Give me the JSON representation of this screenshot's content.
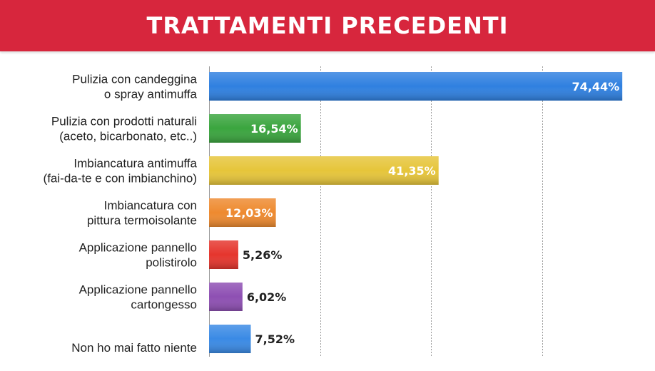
{
  "header": {
    "title": "TRATTAMENTI PRECEDENTI"
  },
  "colors": {
    "header_bg": "#d7263d",
    "grid": "#9a9a9a"
  },
  "chart_data": {
    "type": "bar",
    "orientation": "horizontal",
    "title": "TRATTAMENTI PRECEDENTI",
    "xlim": [
      0,
      75
    ],
    "grid": true,
    "legend": "none",
    "categories": [
      [
        "Pulizia con candeggina",
        "o spray antimuffa"
      ],
      [
        "Pulizia con prodotti naturali",
        "(aceto, bicarbonato, etc..)"
      ],
      [
        "Imbiancatura antimuffa",
        "(fai-da-te e con imbianchino)"
      ],
      [
        "Imbiancatura con",
        "pittura termoisolante"
      ],
      [
        "Applicazione pannello",
        "polistirolo"
      ],
      [
        "Applicazione pannello",
        "cartongesso"
      ],
      [
        "Non ho mai fatto niente"
      ]
    ],
    "values": [
      74.44,
      16.54,
      41.35,
      12.03,
      5.26,
      6.02,
      7.52
    ],
    "value_labels": [
      "74,44%",
      "16,54%",
      "41,35%",
      "12,03%",
      "5,26%",
      "6,02%",
      "7,52%"
    ],
    "bar_colors": [
      "#2f80e0",
      "#3aa53e",
      "#e6c53a",
      "#ee8a2f",
      "#e5352d",
      "#8e4fb3",
      "#3a8ae5"
    ]
  }
}
